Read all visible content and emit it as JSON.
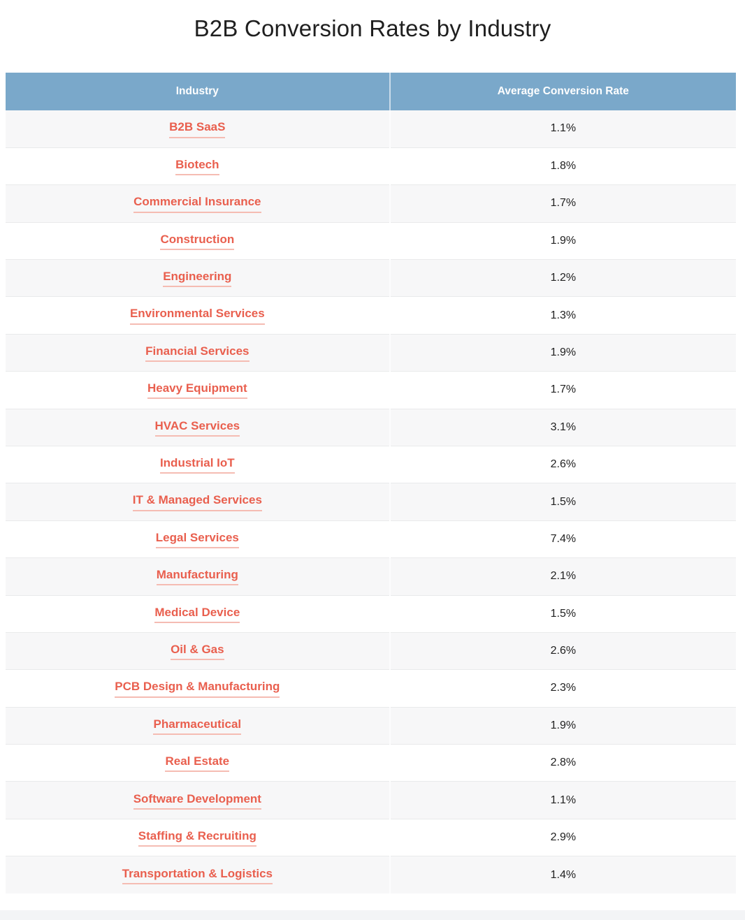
{
  "page_title": "B2B Conversion Rates by Industry",
  "chart_data": {
    "type": "table",
    "title": "B2B Conversion Rates by Industry",
    "columns": [
      "Industry",
      "Average Conversion Rate"
    ],
    "rows": [
      {
        "industry": "B2B SaaS",
        "rate": "1.1%"
      },
      {
        "industry": "Biotech",
        "rate": "1.8%"
      },
      {
        "industry": "Commercial Insurance",
        "rate": "1.7%"
      },
      {
        "industry": "Construction",
        "rate": "1.9%"
      },
      {
        "industry": "Engineering",
        "rate": "1.2%"
      },
      {
        "industry": "Environmental Services",
        "rate": "1.3%"
      },
      {
        "industry": "Financial Services",
        "rate": "1.9%"
      },
      {
        "industry": "Heavy Equipment",
        "rate": "1.7%"
      },
      {
        "industry": "HVAC Services",
        "rate": "3.1%"
      },
      {
        "industry": "Industrial IoT",
        "rate": "2.6%"
      },
      {
        "industry": "IT & Managed Services",
        "rate": "1.5%"
      },
      {
        "industry": "Legal Services",
        "rate": "7.4%"
      },
      {
        "industry": "Manufacturing",
        "rate": "2.1%"
      },
      {
        "industry": "Medical Device",
        "rate": "1.5%"
      },
      {
        "industry": "Oil & Gas",
        "rate": "2.6%"
      },
      {
        "industry": "PCB Design & Manufacturing",
        "rate": "2.3%"
      },
      {
        "industry": "Pharmaceutical",
        "rate": "1.9%"
      },
      {
        "industry": "Real Estate",
        "rate": "2.8%"
      },
      {
        "industry": "Software Development",
        "rate": "1.1%"
      },
      {
        "industry": "Staffing & Recruiting",
        "rate": "2.9%"
      },
      {
        "industry": "Transportation & Logistics",
        "rate": "1.4%"
      }
    ],
    "values_numeric_percent": [
      1.1,
      1.8,
      1.7,
      1.9,
      1.2,
      1.3,
      1.9,
      1.7,
      3.1,
      2.6,
      1.5,
      7.4,
      2.1,
      1.5,
      2.6,
      2.3,
      1.9,
      2.8,
      1.1,
      2.9,
      1.4
    ],
    "layout_hints": {
      "header_position": "top",
      "zebra_striping": true,
      "first_data_row_shaded": true,
      "industry_cells_are_links": true,
      "alignment": "center"
    }
  },
  "colors": {
    "header_bg": "#7aa8ca",
    "header_text": "#ffffff",
    "link": "#e95f4e",
    "link_underline": "#f5bcb3",
    "row_bg": "#ffffff",
    "row_alt_bg": "#f7f7f8",
    "row_border": "#e9eaeb",
    "rate_text": "#212121",
    "title_text": "#1f1f1f",
    "footer_bg": "#f3f4f6"
  }
}
